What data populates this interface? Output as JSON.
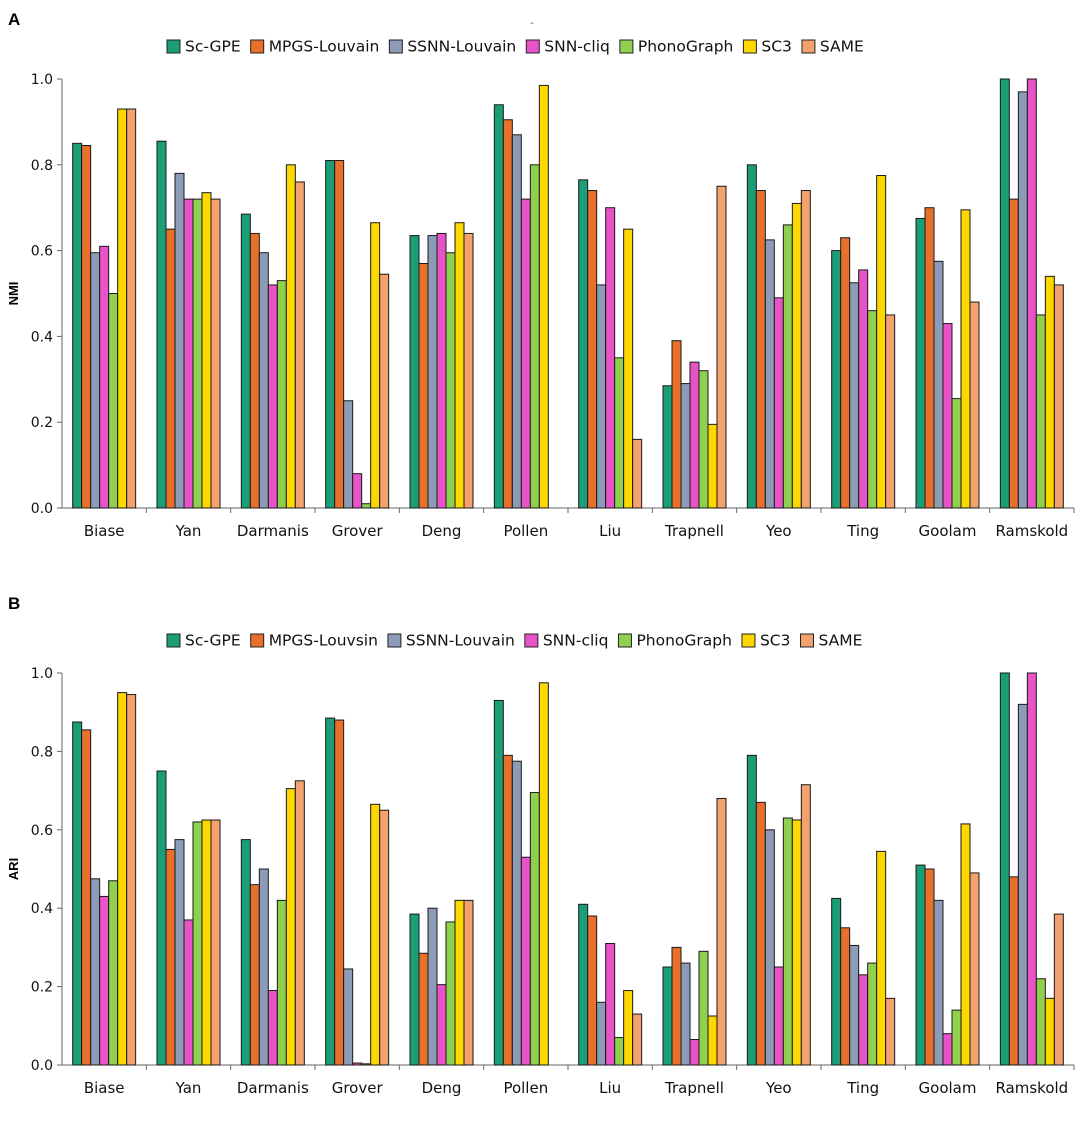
{
  "series_colors": [
    "#1b9e77",
    "#e8702a",
    "#8c9cb6",
    "#e853c8",
    "#8fd14f",
    "#fcd700",
    "#f3a26e"
  ],
  "chart_data": [
    {
      "panel": "A",
      "type": "bar",
      "title": "-",
      "xlabel": "",
      "ylabel": "NMI",
      "ylim": [
        0,
        1.0
      ],
      "yticks": [
        "0.0",
        "0.2",
        "0.4",
        "0.6",
        "0.8",
        "1.0"
      ],
      "grid": false,
      "legend_position": "top-center",
      "categories": [
        "Biase",
        "Yan",
        "Darmanis",
        "Grover",
        "Deng",
        "Pollen",
        "Liu",
        "Trapnell",
        "Yeo",
        "Ting",
        "Goolam",
        "Ramskold"
      ],
      "series": [
        {
          "name": "Sc-GPE",
          "values": [
            0.85,
            0.855,
            0.685,
            0.81,
            0.635,
            0.94,
            0.765,
            0.285,
            0.8,
            0.6,
            0.675,
            1.0
          ]
        },
        {
          "name": "MPGS-Louvain",
          "values": [
            0.845,
            0.65,
            0.64,
            0.81,
            0.57,
            0.905,
            0.74,
            0.39,
            0.74,
            0.63,
            0.7,
            0.72
          ]
        },
        {
          "name": "SSNN-Louvain",
          "values": [
            0.595,
            0.78,
            0.595,
            0.25,
            0.635,
            0.87,
            0.52,
            0.29,
            0.625,
            0.525,
            0.575,
            0.97
          ]
        },
        {
          "name": "SNN-cliq",
          "values": [
            0.61,
            0.72,
            0.52,
            0.08,
            0.64,
            0.72,
            0.7,
            0.34,
            0.49,
            0.555,
            0.43,
            1.0
          ]
        },
        {
          "name": "PhonoGraph",
          "values": [
            0.5,
            0.72,
            0.53,
            0.01,
            0.595,
            0.8,
            0.35,
            0.32,
            0.66,
            0.46,
            0.255,
            0.45
          ]
        },
        {
          "name": "SC3",
          "values": [
            0.93,
            0.735,
            0.8,
            0.665,
            0.665,
            0.985,
            0.65,
            0.195,
            0.71,
            0.775,
            0.695,
            0.54
          ]
        },
        {
          "name": "SAME",
          "values": [
            0.93,
            0.72,
            0.76,
            0.545,
            0.64,
            null,
            0.16,
            0.75,
            0.74,
            0.45,
            0.48,
            0.52
          ]
        }
      ]
    },
    {
      "panel": "B",
      "type": "bar",
      "title": "",
      "xlabel": "",
      "ylabel": "ARI",
      "ylim": [
        0,
        1.0
      ],
      "yticks": [
        "0.0",
        "0.2",
        "0.4",
        "0.6",
        "0.8",
        "1.0"
      ],
      "grid": false,
      "legend_position": "top-center",
      "categories": [
        "Biase",
        "Yan",
        "Darmanis",
        "Grover",
        "Deng",
        "Pollen",
        "Liu",
        "Trapnell",
        "Yeo",
        "Ting",
        "Goolam",
        "Ramskold"
      ],
      "series": [
        {
          "name": "Sc-GPE",
          "values": [
            0.875,
            0.75,
            0.575,
            0.885,
            0.385,
            0.93,
            0.41,
            0.25,
            0.79,
            0.425,
            0.51,
            1.0
          ]
        },
        {
          "name": "MPGS-Louvsin",
          "values": [
            0.855,
            0.55,
            0.46,
            0.88,
            0.285,
            0.79,
            0.38,
            0.3,
            0.67,
            0.35,
            0.5,
            0.48
          ]
        },
        {
          "name": "SSNN-Louvain",
          "values": [
            0.475,
            0.575,
            0.5,
            0.245,
            0.4,
            0.775,
            0.16,
            0.26,
            0.6,
            0.305,
            0.42,
            0.92
          ]
        },
        {
          "name": "SNN-cliq",
          "values": [
            0.43,
            0.37,
            0.19,
            0.005,
            0.205,
            0.53,
            0.31,
            0.065,
            0.25,
            0.23,
            0.08,
            1.0
          ]
        },
        {
          "name": "PhonoGraph",
          "values": [
            0.47,
            0.62,
            0.42,
            0.003,
            0.365,
            0.695,
            0.07,
            0.29,
            0.63,
            0.26,
            0.14,
            0.22
          ]
        },
        {
          "name": "SC3",
          "values": [
            0.95,
            0.625,
            0.705,
            0.665,
            0.42,
            0.975,
            0.19,
            0.125,
            0.625,
            0.545,
            0.615,
            0.17
          ]
        },
        {
          "name": "SAME",
          "values": [
            0.945,
            0.625,
            0.725,
            0.65,
            0.42,
            null,
            0.13,
            0.68,
            0.715,
            0.17,
            0.49,
            0.385
          ]
        }
      ]
    }
  ]
}
